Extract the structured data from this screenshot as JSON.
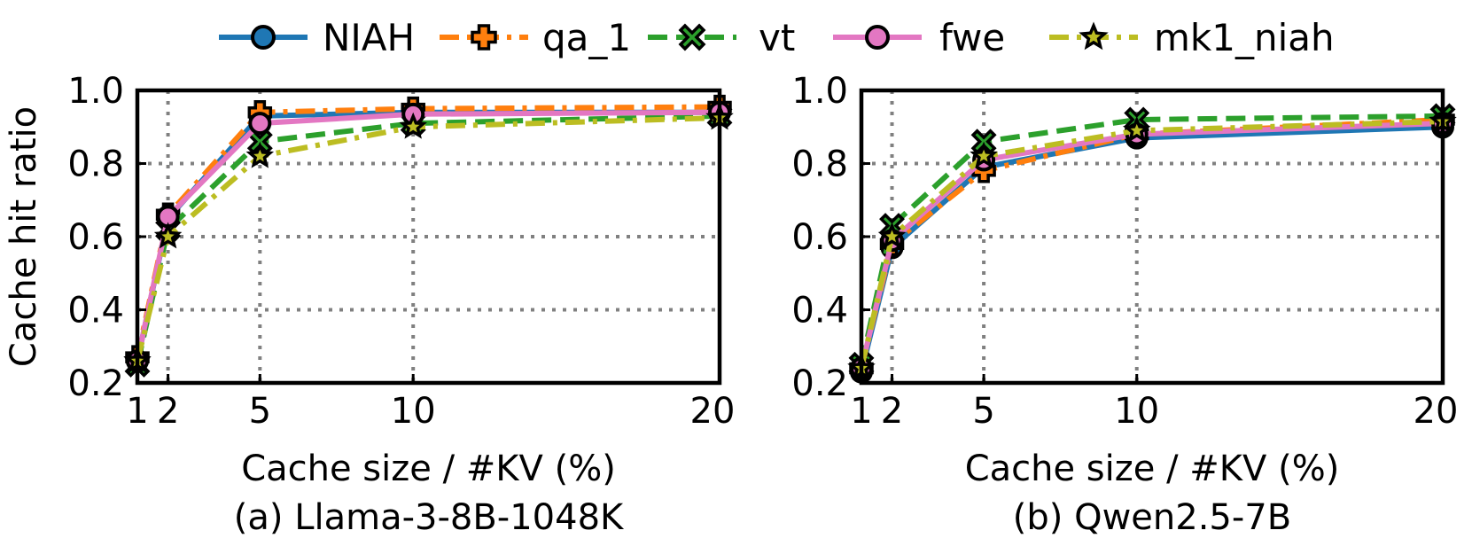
{
  "legend": [
    {
      "name": "NIAH",
      "color": "#1f77b4",
      "dash": "solid",
      "marker": "circle"
    },
    {
      "name": "qa_1",
      "color": "#ff7f0e",
      "dash": "dashdot",
      "marker": "plus"
    },
    {
      "name": "vt",
      "color": "#2ca02c",
      "dash": "dashed",
      "marker": "x"
    },
    {
      "name": "fwe",
      "color": "#e377c2",
      "dash": "solid",
      "marker": "circle"
    },
    {
      "name": "mk1_niah",
      "color": "#bcbd22",
      "dash": "dashdot",
      "marker": "star"
    }
  ],
  "chart_data": [
    {
      "type": "line",
      "caption": "(a) Llama-3-8B-1048K",
      "xlabel": "Cache size / #KV (%)",
      "ylabel": "Cache hit ratio",
      "x": [
        1,
        2,
        5,
        10,
        20
      ],
      "xticks": [
        1,
        2,
        5,
        10,
        20
      ],
      "yticks": [
        0.2,
        0.4,
        0.6,
        0.8,
        1.0
      ],
      "xlim": [
        1,
        20
      ],
      "ylim": [
        0.2,
        1.0
      ],
      "grid": true,
      "series": [
        {
          "name": "NIAH",
          "values": [
            0.26,
            0.65,
            0.93,
            0.94,
            0.94
          ]
        },
        {
          "name": "qa_1",
          "values": [
            0.27,
            0.66,
            0.94,
            0.95,
            0.955
          ]
        },
        {
          "name": "vt",
          "values": [
            0.25,
            0.62,
            0.86,
            0.91,
            0.93
          ]
        },
        {
          "name": "fwe",
          "values": [
            0.26,
            0.655,
            0.91,
            0.935,
            0.94
          ]
        },
        {
          "name": "mk1_niah",
          "values": [
            0.26,
            0.6,
            0.82,
            0.9,
            0.925
          ]
        }
      ]
    },
    {
      "type": "line",
      "caption": "(b) Qwen2.5-7B",
      "xlabel": "Cache size / #KV (%)",
      "ylabel": "",
      "x": [
        1,
        2,
        5,
        10,
        20
      ],
      "xticks": [
        1,
        2,
        5,
        10,
        20
      ],
      "yticks": [
        0.2,
        0.4,
        0.6,
        0.8,
        1.0
      ],
      "xlim": [
        1,
        20
      ],
      "ylim": [
        0.2,
        1.0
      ],
      "grid": true,
      "series": [
        {
          "name": "NIAH",
          "values": [
            0.23,
            0.57,
            0.79,
            0.87,
            0.9
          ]
        },
        {
          "name": "qa_1",
          "values": [
            0.24,
            0.58,
            0.78,
            0.88,
            0.92
          ]
        },
        {
          "name": "vt",
          "values": [
            0.25,
            0.63,
            0.86,
            0.92,
            0.93
          ]
        },
        {
          "name": "fwe",
          "values": [
            0.24,
            0.59,
            0.81,
            0.88,
            0.91
          ]
        },
        {
          "name": "mk1_niah",
          "values": [
            0.24,
            0.6,
            0.82,
            0.89,
            0.915
          ]
        }
      ]
    }
  ]
}
